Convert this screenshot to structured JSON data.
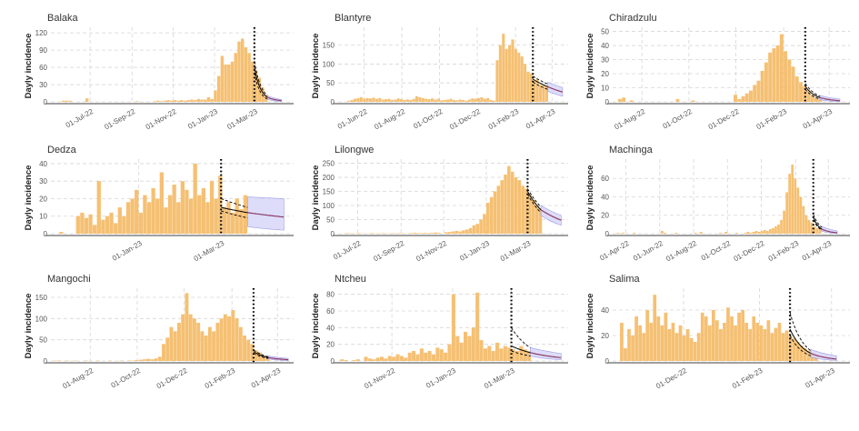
{
  "chart_data": [
    {
      "type": "bar",
      "title": "Balaka",
      "ylabel": "Dayly incidence",
      "xlim": [
        "2022-05-04",
        "2023-04-28"
      ],
      "ylim": [
        0,
        125
      ],
      "yticks": [
        0,
        30,
        60,
        90,
        120
      ],
      "xticks": [
        {
          "date": "2022-07-01",
          "label": "01-Jul-22"
        },
        {
          "date": "2022-09-01",
          "label": "01-Sep-22"
        },
        {
          "date": "2022-11-01",
          "label": "01-Nov-22"
        },
        {
          "date": "2023-01-01",
          "label": "01-Jan-23"
        },
        {
          "date": "2023-03-01",
          "label": "01-Mar-23"
        }
      ],
      "bars": {
        "start": "2022-05-20",
        "step_days": 5,
        "values": [
          2,
          2,
          2,
          0,
          0,
          0,
          0,
          6,
          0,
          0,
          0,
          0,
          0,
          0,
          0,
          0,
          0,
          0,
          0,
          0,
          0,
          0,
          1,
          0,
          0,
          0,
          0,
          1,
          2,
          1,
          2,
          3,
          2,
          3,
          2,
          3,
          2,
          3,
          4,
          3,
          5,
          4,
          4,
          8,
          5,
          20,
          45,
          80,
          65,
          65,
          70,
          85,
          105,
          110,
          95,
          85,
          70,
          55,
          42,
          25,
          12
        ]
      },
      "cutoff": "2023-03-01",
      "fit": {
        "start": "2023-03-01",
        "end": "2023-03-20",
        "values": [
          60,
          8
        ],
        "lower": [
          50,
          5
        ],
        "upper": [
          70,
          11
        ]
      },
      "forecast": {
        "start": "2023-03-20",
        "end": "2023-04-10",
        "values": [
          8,
          2
        ],
        "lower": [
          5,
          0.5
        ],
        "upper": [
          11,
          4
        ]
      }
    },
    {
      "type": "bar",
      "title": "Blantyre",
      "ylabel": "Dayly incidence",
      "xlim": [
        "2022-04-20",
        "2023-04-27"
      ],
      "ylim": [
        0,
        190
      ],
      "yticks": [
        0,
        50,
        100,
        150
      ],
      "xticks": [
        {
          "date": "2022-06-01",
          "label": "01-Jun-22"
        },
        {
          "date": "2022-08-01",
          "label": "01-Aug-22"
        },
        {
          "date": "2022-10-01",
          "label": "01-Oct-22"
        },
        {
          "date": "2022-12-01",
          "label": "01-Dec-22"
        },
        {
          "date": "2023-02-01",
          "label": "01-Feb-23"
        },
        {
          "date": "2023-04-01",
          "label": "01-Apr-23"
        }
      ],
      "bars": {
        "start": "2022-05-05",
        "step_days": 5,
        "values": [
          3,
          5,
          8,
          10,
          12,
          8,
          10,
          9,
          11,
          8,
          10,
          6,
          7,
          8,
          5,
          6,
          9,
          7,
          5,
          6,
          5,
          8,
          15,
          12,
          10,
          8,
          7,
          9,
          6,
          8,
          4,
          5,
          6,
          8,
          5,
          4,
          6,
          5,
          3,
          6,
          9,
          8,
          10,
          12,
          8,
          10,
          5,
          3,
          110,
          150,
          180,
          140,
          150,
          165,
          140,
          130,
          120,
          100,
          80,
          75,
          55,
          60,
          45,
          45,
          40
        ]
      },
      "cutoff": "2023-03-01",
      "fit": {
        "start": "2023-03-01",
        "end": "2023-03-25",
        "values": [
          60,
          40
        ],
        "lower": [
          52,
          33
        ],
        "upper": [
          68,
          47
        ]
      },
      "forecast": {
        "start": "2023-03-25",
        "end": "2023-04-18",
        "values": [
          40,
          26
        ],
        "lower": [
          28,
          15
        ],
        "upper": [
          52,
          38
        ]
      }
    },
    {
      "type": "bar",
      "title": "Chiradzulu",
      "ylabel": "Dayly incidence",
      "xlim": [
        "2022-06-24",
        "2023-04-28"
      ],
      "ylim": [
        0,
        51
      ],
      "yticks": [
        0,
        10,
        20,
        30,
        40,
        50
      ],
      "xticks": [
        {
          "date": "2022-08-01",
          "label": "01-Aug-22"
        },
        {
          "date": "2022-10-01",
          "label": "01-Oct-22"
        },
        {
          "date": "2022-12-01",
          "label": "01-Dec-22"
        },
        {
          "date": "2023-02-01",
          "label": "01-Feb-23"
        },
        {
          "date": "2023-04-01",
          "label": "01-Apr-23"
        }
      ],
      "bars": {
        "start": "2022-07-01",
        "step_days": 5,
        "values": [
          2,
          3,
          0,
          1,
          0,
          0,
          0,
          0,
          0,
          0,
          0,
          0,
          0,
          0,
          0,
          2,
          0,
          0,
          0,
          1,
          0,
          0,
          0,
          0,
          0,
          0,
          0,
          0,
          0,
          0,
          5,
          2,
          4,
          6,
          8,
          12,
          15,
          22,
          28,
          35,
          38,
          40,
          48,
          36,
          30,
          25,
          18,
          14,
          11,
          8,
          5,
          3,
          2
        ]
      },
      "cutoff": "2023-03-01",
      "fit": {
        "start": "2023-03-01",
        "end": "2023-03-20",
        "values": [
          11,
          3
        ],
        "lower": [
          9,
          2
        ],
        "upper": [
          13,
          4
        ]
      },
      "forecast": {
        "start": "2023-03-20",
        "end": "2023-04-15",
        "values": [
          3,
          0.8
        ],
        "lower": [
          1.5,
          0.2
        ],
        "upper": [
          4.5,
          2
        ]
      }
    },
    {
      "type": "bar",
      "title": "Dedza",
      "ylabel": "Dayly incidence",
      "xlim": [
        "2022-10-30",
        "2023-04-22"
      ],
      "ylim": [
        0,
        41
      ],
      "yticks": [
        0,
        10,
        20,
        30,
        40
      ],
      "xticks": [
        {
          "date": "2023-01-01",
          "label": "01-Jan-23"
        },
        {
          "date": "2023-03-01",
          "label": "01-Mar-23"
        }
      ],
      "bars": {
        "start": "2022-11-05",
        "step_days": 3,
        "values": [
          1,
          0,
          0,
          0,
          10,
          12,
          9,
          11,
          5,
          30,
          8,
          10,
          12,
          6,
          15,
          10,
          18,
          20,
          25,
          12,
          22,
          18,
          26,
          20,
          35,
          15,
          22,
          28,
          18,
          30,
          25,
          20,
          40,
          22,
          26,
          18,
          30,
          20,
          33,
          15,
          18,
          12,
          20,
          14,
          22
        ]
      },
      "cutoff": "2023-03-01",
      "fit": {
        "start": "2023-03-01",
        "end": "2023-03-20",
        "values": [
          15,
          12
        ],
        "lower": [
          13,
          9
        ],
        "upper": [
          20,
          15
        ]
      },
      "forecast": {
        "start": "2023-03-20",
        "end": "2023-04-15",
        "values": [
          12,
          9.5
        ],
        "lower": [
          4,
          2
        ],
        "upper": [
          21,
          20
        ]
      }
    },
    {
      "type": "bar",
      "title": "Lilongwe",
      "ylabel": "Dayly incidence",
      "xlim": [
        "2022-06-03",
        "2023-04-28"
      ],
      "ylim": [
        0,
        255
      ],
      "yticks": [
        0,
        50,
        100,
        150,
        200,
        250
      ],
      "xticks": [
        {
          "date": "2022-07-01",
          "label": "01-Jul-22"
        },
        {
          "date": "2022-09-01",
          "label": "01-Sep-22"
        },
        {
          "date": "2022-11-01",
          "label": "01-Nov-22"
        },
        {
          "date": "2023-01-01",
          "label": "01-Jan-23"
        },
        {
          "date": "2023-03-01",
          "label": "01-Mar-23"
        }
      ],
      "bars": {
        "start": "2022-06-10",
        "step_days": 5,
        "values": [
          1,
          2,
          1,
          1,
          2,
          1,
          0,
          1,
          2,
          1,
          1,
          2,
          1,
          1,
          2,
          1,
          2,
          1,
          1,
          2,
          3,
          2,
          2,
          3,
          2,
          3,
          4,
          3,
          0,
          5,
          6,
          8,
          10,
          8,
          12,
          15,
          20,
          30,
          35,
          50,
          70,
          110,
          130,
          150,
          170,
          190,
          210,
          240,
          220,
          200,
          190,
          170,
          160,
          140,
          120,
          100,
          90
        ]
      },
      "cutoff": "2023-03-01",
      "fit": {
        "start": "2023-03-01",
        "end": "2023-03-20",
        "values": [
          150,
          85
        ],
        "lower": [
          140,
          75
        ],
        "upper": [
          160,
          95
        ]
      },
      "forecast": {
        "start": "2023-03-20",
        "end": "2023-04-18",
        "values": [
          85,
          48
        ],
        "lower": [
          65,
          30
        ],
        "upper": [
          100,
          65
        ]
      }
    },
    {
      "type": "bar",
      "title": "Machinga",
      "ylabel": "Dayly incidence",
      "xlim": [
        "2022-03-08",
        "2023-05-10"
      ],
      "ylim": [
        0,
        78
      ],
      "yticks": [
        0,
        20,
        40,
        60
      ],
      "xticks": [
        {
          "date": "2022-04-01",
          "label": "01-Apr-22"
        },
        {
          "date": "2022-06-01",
          "label": "01-Jun-22"
        },
        {
          "date": "2022-08-01",
          "label": "01-Aug-22"
        },
        {
          "date": "2022-10-01",
          "label": "01-Oct-22"
        },
        {
          "date": "2022-12-01",
          "label": "01-Dec-22"
        },
        {
          "date": "2023-02-01",
          "label": "01-Feb-23"
        },
        {
          "date": "2023-04-01",
          "label": "01-Apr-23"
        }
      ],
      "bars": {
        "start": "2022-03-15",
        "step_days": 5,
        "values": [
          1,
          0,
          1,
          0,
          0,
          0,
          1,
          0,
          0,
          0,
          0,
          0,
          0,
          0,
          0,
          0,
          3,
          1,
          0,
          0,
          0,
          1,
          0,
          0,
          0,
          0,
          0,
          0,
          1,
          0,
          2,
          0,
          0,
          0,
          0,
          0,
          0,
          1,
          0,
          2,
          0,
          0,
          0,
          1,
          0,
          0,
          1,
          2,
          1,
          2,
          3,
          2,
          3,
          4,
          3,
          5,
          6,
          8,
          10,
          15,
          25,
          45,
          65,
          75,
          60,
          50,
          40,
          30,
          20,
          15,
          12,
          8,
          6,
          5
        ]
      },
      "cutoff": "2023-03-05",
      "fit": {
        "start": "2023-03-05",
        "end": "2023-03-20",
        "values": [
          18,
          5
        ],
        "lower": [
          15,
          4
        ],
        "upper": [
          21,
          7
        ]
      },
      "forecast": {
        "start": "2023-03-20",
        "end": "2023-04-17",
        "values": [
          5,
          1
        ],
        "lower": [
          3,
          0.3
        ],
        "upper": [
          8,
          3
        ]
      }
    },
    {
      "type": "bar",
      "title": "Mangochi",
      "ylabel": "Dayly incidence",
      "xlim": [
        "2022-06-11",
        "2023-04-22"
      ],
      "ylim": [
        0,
        165
      ],
      "yticks": [
        0,
        50,
        100,
        150
      ],
      "xticks": [
        {
          "date": "2022-08-01",
          "label": "01-Aug-22"
        },
        {
          "date": "2022-10-01",
          "label": "01-Oct-22"
        },
        {
          "date": "2022-12-01",
          "label": "01-Dec-22"
        },
        {
          "date": "2023-02-01",
          "label": "01-Feb-23"
        },
        {
          "date": "2023-04-01",
          "label": "01-Apr-23"
        }
      ],
      "bars": {
        "start": "2022-06-15",
        "step_days": 5,
        "values": [
          1,
          1,
          0,
          1,
          0,
          1,
          0,
          0,
          1,
          0,
          0,
          1,
          0,
          0,
          1,
          0,
          0,
          1,
          0,
          1,
          1,
          2,
          3,
          4,
          5,
          4,
          6,
          10,
          40,
          55,
          80,
          70,
          90,
          110,
          160,
          110,
          100,
          90,
          70,
          60,
          80,
          70,
          90,
          100,
          110,
          105,
          120,
          100,
          80,
          60,
          50,
          40,
          25,
          20,
          12,
          8
        ]
      },
      "cutoff": "2023-03-01",
      "fit": {
        "start": "2023-03-01",
        "end": "2023-03-20",
        "values": [
          22,
          8
        ],
        "lower": [
          18,
          6
        ],
        "upper": [
          26,
          10
        ]
      },
      "forecast": {
        "start": "2023-03-20",
        "end": "2023-04-15",
        "values": [
          8,
          3
        ],
        "lower": [
          5,
          1
        ],
        "upper": [
          12,
          6
        ]
      }
    },
    {
      "type": "bar",
      "title": "Ntcheu",
      "ylabel": "Dayly incidence",
      "xlim": [
        "2022-09-08",
        "2023-04-27"
      ],
      "ylim": [
        0,
        84
      ],
      "yticks": [
        0,
        20,
        40,
        60,
        80
      ],
      "xticks": [
        {
          "date": "2022-11-01",
          "label": "01-Nov-22"
        },
        {
          "date": "2023-01-01",
          "label": "01-Jan-23"
        },
        {
          "date": "2023-03-01",
          "label": "01-Mar-23"
        }
      ],
      "bars": {
        "start": "2022-09-10",
        "step_days": 4,
        "values": [
          2,
          1,
          0,
          1,
          2,
          0,
          5,
          3,
          2,
          4,
          5,
          3,
          6,
          5,
          8,
          6,
          4,
          10,
          12,
          8,
          15,
          10,
          12,
          8,
          16,
          14,
          10,
          20,
          80,
          30,
          22,
          35,
          30,
          40,
          82,
          25,
          15,
          18,
          12,
          22,
          15,
          18,
          16,
          14,
          12,
          18,
          14,
          12
        ]
      },
      "cutoff": "2023-03-01",
      "fit": {
        "start": "2023-03-01",
        "end": "2023-03-20",
        "values": [
          18,
          10
        ],
        "lower": [
          12,
          6
        ],
        "upper": [
          40,
          16
        ]
      },
      "forecast": {
        "start": "2023-03-20",
        "end": "2023-04-20",
        "values": [
          10,
          4
        ],
        "lower": [
          6,
          1.5
        ],
        "upper": [
          16,
          9
        ]
      }
    },
    {
      "type": "bar",
      "title": "Salima",
      "ylabel": "Dayly incidence",
      "xlim": [
        "2022-10-04",
        "2023-04-16"
      ],
      "ylim": [
        0,
        55
      ],
      "yticks": [
        0,
        20,
        40
      ],
      "xticks": [
        {
          "date": "2022-12-01",
          "label": "01-Dec-22"
        },
        {
          "date": "2023-02-01",
          "label": "01-Feb-23"
        },
        {
          "date": "2023-04-01",
          "label": "01-Apr-23"
        }
      ],
      "bars": {
        "start": "2022-10-10",
        "step_days": 3,
        "values": [
          30,
          10,
          25,
          20,
          35,
          28,
          22,
          40,
          30,
          52,
          35,
          28,
          38,
          25,
          30,
          22,
          28,
          20,
          25,
          18,
          15,
          22,
          38,
          35,
          28,
          40,
          32,
          25,
          30,
          42,
          35,
          28,
          38,
          40,
          30,
          25,
          35,
          30,
          28,
          25,
          32,
          22,
          26,
          30,
          22,
          24,
          20,
          18,
          15,
          12,
          10,
          8,
          6,
          4
        ]
      },
      "cutoff": "2023-02-26",
      "fit": {
        "start": "2023-02-26",
        "end": "2023-03-15",
        "values": [
          25,
          6
        ],
        "lower": [
          20,
          4
        ],
        "upper": [
          38,
          8
        ]
      },
      "forecast": {
        "start": "2023-03-15",
        "end": "2023-04-05",
        "values": [
          6,
          1.5
        ],
        "lower": [
          3,
          0.5
        ],
        "upper": [
          9,
          4
        ]
      }
    }
  ],
  "colors": {
    "bars": "#f5c073",
    "fit": "#000000",
    "forecast_line": "#8e3b67",
    "forecast_band": "#d4d4f7",
    "forecast_band_edge": "#9a9ae6",
    "grid": "#d6d6d6",
    "axis": "#808080"
  }
}
